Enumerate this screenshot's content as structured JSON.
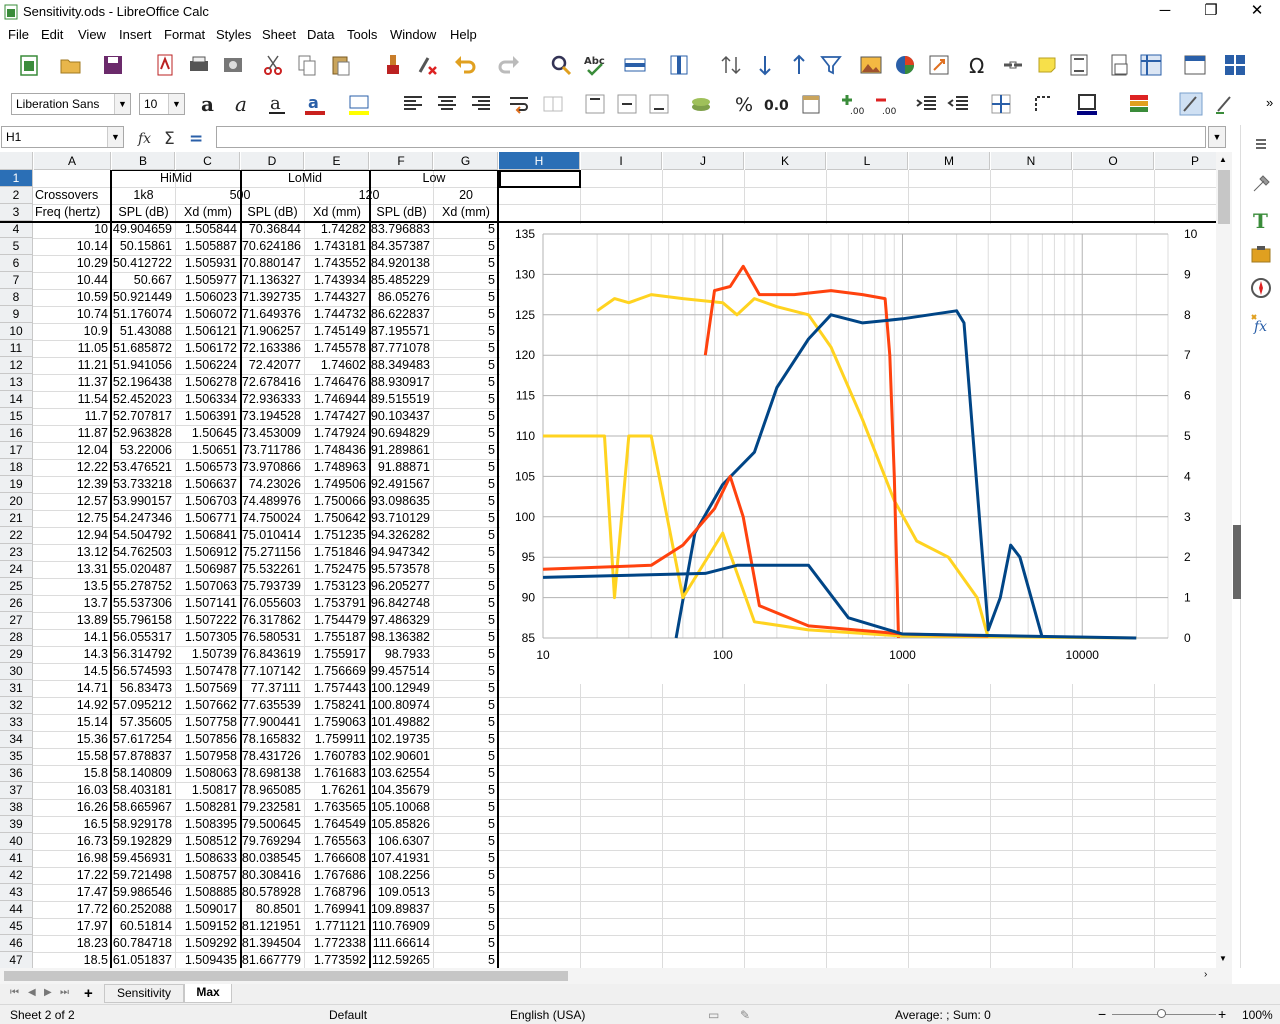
{
  "window": {
    "title": "Sensitivity.ods - LibreOffice Calc",
    "minimize": "─",
    "maximize": "❐",
    "close": "✕"
  },
  "menu": [
    "File",
    "Edit",
    "View",
    "Insert",
    "Format",
    "Styles",
    "Sheet",
    "Data",
    "Tools",
    "Window",
    "Help"
  ],
  "format": {
    "font_name": "Liberation Sans",
    "font_size": "10"
  },
  "formula": {
    "name_box": "H1",
    "content": ""
  },
  "columns": [
    "A",
    "B",
    "C",
    "D",
    "E",
    "F",
    "G",
    "H",
    "I",
    "J",
    "K",
    "L",
    "M",
    "N",
    "O",
    "P"
  ],
  "header_rows": {
    "row1": {
      "b_g": [
        "HiMid",
        "LoMid",
        "Low"
      ]
    },
    "row2": {
      "a": "Crossovers",
      "b": "1k8",
      "cd": "500",
      "ef": "120",
      "g": "20"
    },
    "row3": [
      "Freq (hertz)",
      "SPL (dB)",
      "Xd (mm)",
      "SPL (dB)",
      "Xd (mm)",
      "SPL (dB)",
      "Xd (mm)"
    ]
  },
  "rows": [
    [
      "10",
      "49.904659",
      "1.505844",
      "70.36844",
      "1.74282",
      "83.796883",
      "5"
    ],
    [
      "10.14",
      "50.15861",
      "1.505887",
      "70.624186",
      "1.743181",
      "84.357387",
      "5"
    ],
    [
      "10.29",
      "50.412722",
      "1.505931",
      "70.880147",
      "1.743552",
      "84.920138",
      "5"
    ],
    [
      "10.44",
      "50.667",
      "1.505977",
      "71.136327",
      "1.743934",
      "85.485229",
      "5"
    ],
    [
      "10.59",
      "50.921449",
      "1.506023",
      "71.392735",
      "1.744327",
      "86.05276",
      "5"
    ],
    [
      "10.74",
      "51.176074",
      "1.506072",
      "71.649376",
      "1.744732",
      "86.622837",
      "5"
    ],
    [
      "10.9",
      "51.43088",
      "1.506121",
      "71.906257",
      "1.745149",
      "87.195571",
      "5"
    ],
    [
      "11.05",
      "51.685872",
      "1.506172",
      "72.163386",
      "1.745578",
      "87.771078",
      "5"
    ],
    [
      "11.21",
      "51.941056",
      "1.506224",
      "72.42077",
      "1.74602",
      "88.349483",
      "5"
    ],
    [
      "11.37",
      "52.196438",
      "1.506278",
      "72.678416",
      "1.746476",
      "88.930917",
      "5"
    ],
    [
      "11.54",
      "52.452023",
      "1.506334",
      "72.936333",
      "1.746944",
      "89.515519",
      "5"
    ],
    [
      "11.7",
      "52.707817",
      "1.506391",
      "73.194528",
      "1.747427",
      "90.103437",
      "5"
    ],
    [
      "11.87",
      "52.963828",
      "1.50645",
      "73.453009",
      "1.747924",
      "90.694829",
      "5"
    ],
    [
      "12.04",
      "53.22006",
      "1.50651",
      "73.711786",
      "1.748436",
      "91.289861",
      "5"
    ],
    [
      "12.22",
      "53.476521",
      "1.506573",
      "73.970866",
      "1.748963",
      "91.88871",
      "5"
    ],
    [
      "12.39",
      "53.733218",
      "1.506637",
      "74.23026",
      "1.749506",
      "92.491567",
      "5"
    ],
    [
      "12.57",
      "53.990157",
      "1.506703",
      "74.489976",
      "1.750066",
      "93.098635",
      "5"
    ],
    [
      "12.75",
      "54.247346",
      "1.506771",
      "74.750024",
      "1.750642",
      "93.710129",
      "5"
    ],
    [
      "12.94",
      "54.504792",
      "1.506841",
      "75.010414",
      "1.751235",
      "94.326282",
      "5"
    ],
    [
      "13.12",
      "54.762503",
      "1.506912",
      "75.271156",
      "1.751846",
      "94.947342",
      "5"
    ],
    [
      "13.31",
      "55.020487",
      "1.506987",
      "75.532261",
      "1.752475",
      "95.573578",
      "5"
    ],
    [
      "13.5",
      "55.278752",
      "1.507063",
      "75.793739",
      "1.753123",
      "96.205277",
      "5"
    ],
    [
      "13.7",
      "55.537306",
      "1.507141",
      "76.055603",
      "1.753791",
      "96.842748",
      "5"
    ],
    [
      "13.89",
      "55.796158",
      "1.507222",
      "76.317862",
      "1.754479",
      "97.486329",
      "5"
    ],
    [
      "14.1",
      "56.055317",
      "1.507305",
      "76.580531",
      "1.755187",
      "98.136382",
      "5"
    ],
    [
      "14.3",
      "56.314792",
      "1.50739",
      "76.843619",
      "1.755917",
      "98.7933",
      "5"
    ],
    [
      "14.5",
      "56.574593",
      "1.507478",
      "77.107142",
      "1.756669",
      "99.457514",
      "5"
    ],
    [
      "14.71",
      "56.83473",
      "1.507569",
      "77.37111",
      "1.757443",
      "100.12949",
      "5"
    ],
    [
      "14.92",
      "57.095212",
      "1.507662",
      "77.635539",
      "1.758241",
      "100.80974",
      "5"
    ],
    [
      "15.14",
      "57.35605",
      "1.507758",
      "77.900441",
      "1.759063",
      "101.49882",
      "5"
    ],
    [
      "15.36",
      "57.617254",
      "1.507856",
      "78.165832",
      "1.759911",
      "102.19735",
      "5"
    ],
    [
      "15.58",
      "57.878837",
      "1.507958",
      "78.431726",
      "1.760783",
      "102.90601",
      "5"
    ],
    [
      "15.8",
      "58.140809",
      "1.508063",
      "78.698138",
      "1.761683",
      "103.62554",
      "5"
    ],
    [
      "16.03",
      "58.403181",
      "1.50817",
      "78.965085",
      "1.76261",
      "104.35679",
      "5"
    ],
    [
      "16.26",
      "58.665967",
      "1.508281",
      "79.232581",
      "1.763565",
      "105.10068",
      "5"
    ],
    [
      "16.5",
      "58.929178",
      "1.508395",
      "79.500645",
      "1.764549",
      "105.85826",
      "5"
    ],
    [
      "16.73",
      "59.192829",
      "1.508512",
      "79.769294",
      "1.765563",
      "106.6307",
      "5"
    ],
    [
      "16.98",
      "59.456931",
      "1.508633",
      "80.038545",
      "1.766608",
      "107.41931",
      "5"
    ],
    [
      "17.22",
      "59.721498",
      "1.508757",
      "80.308416",
      "1.767686",
      "108.2256",
      "5"
    ],
    [
      "17.47",
      "59.986546",
      "1.508885",
      "80.578928",
      "1.768796",
      "109.0513",
      "5"
    ],
    [
      "17.72",
      "60.252088",
      "1.509017",
      "80.8501",
      "1.769941",
      "109.89837",
      "5"
    ],
    [
      "17.97",
      "60.51814",
      "1.509152",
      "81.121951",
      "1.771121",
      "110.76909",
      "5"
    ],
    [
      "18.23",
      "60.784718",
      "1.509292",
      "81.394504",
      "1.772338",
      "111.66614",
      "5"
    ],
    [
      "18.5",
      "61.051837",
      "1.509435",
      "81.667779",
      "1.773592",
      "112.59265",
      "5"
    ]
  ],
  "chart_data": {
    "type": "line",
    "title": "",
    "x_scale": "log",
    "xlim": [
      10,
      30000
    ],
    "x_ticks": [
      "10",
      "100",
      "1000",
      "10000"
    ],
    "y_left": {
      "ylim": [
        85,
        135
      ],
      "ticks": [
        "85",
        "90",
        "95",
        "100",
        "105",
        "110",
        "115",
        "120",
        "125",
        "130",
        "135"
      ]
    },
    "y_right": {
      "ylim": [
        0,
        10
      ],
      "ticks": [
        "0",
        "1",
        "2",
        "3",
        "4",
        "5",
        "6",
        "7",
        "8",
        "9",
        "10"
      ]
    },
    "grid": true,
    "legend": "none",
    "series": [
      {
        "color": "#ffd320",
        "axis": "left",
        "points": [
          [
            20,
            125.5
          ],
          [
            25,
            127
          ],
          [
            30,
            126.5
          ],
          [
            40,
            127.5
          ],
          [
            60,
            127
          ],
          [
            100,
            126.5
          ],
          [
            120,
            125
          ],
          [
            150,
            127
          ],
          [
            200,
            126
          ],
          [
            300,
            125
          ],
          [
            400,
            121
          ],
          [
            600,
            112
          ],
          [
            900,
            102
          ],
          [
            1200,
            97
          ],
          [
            1800,
            95
          ],
          [
            2600,
            90
          ],
          [
            3000,
            85
          ]
        ]
      },
      {
        "color": "#ff420e",
        "axis": "left",
        "points": [
          [
            80,
            120
          ],
          [
            90,
            128
          ],
          [
            110,
            128.5
          ],
          [
            130,
            131
          ],
          [
            160,
            127.5
          ],
          [
            250,
            127.5
          ],
          [
            400,
            128
          ],
          [
            600,
            127.5
          ],
          [
            800,
            127
          ],
          [
            850,
            120
          ],
          [
            900,
            105
          ],
          [
            950,
            85
          ]
        ]
      },
      {
        "color": "#004586",
        "axis": "left",
        "points": [
          [
            55,
            85
          ],
          [
            70,
            98
          ],
          [
            100,
            104
          ],
          [
            150,
            108
          ],
          [
            200,
            116
          ],
          [
            300,
            122
          ],
          [
            400,
            125
          ],
          [
            600,
            124
          ],
          [
            1000,
            124.5
          ],
          [
            2000,
            125.5
          ],
          [
            2200,
            124
          ],
          [
            3000,
            86
          ],
          [
            3500,
            90
          ],
          [
            4000,
            96.5
          ],
          [
            4500,
            95
          ],
          [
            6000,
            85
          ]
        ]
      },
      {
        "color": "#ffd320",
        "axis": "right",
        "points": [
          [
            10,
            5
          ],
          [
            22,
            5
          ],
          [
            25,
            1
          ],
          [
            30,
            5
          ],
          [
            40,
            5
          ],
          [
            60,
            1
          ],
          [
            100,
            2.6
          ],
          [
            150,
            0.4
          ],
          [
            300,
            0.2
          ],
          [
            1000,
            0.05
          ],
          [
            20000,
            0
          ]
        ]
      },
      {
        "color": "#ff420e",
        "axis": "right",
        "points": [
          [
            10,
            1.7
          ],
          [
            40,
            1.8
          ],
          [
            60,
            2.3
          ],
          [
            90,
            3.2
          ],
          [
            110,
            4
          ],
          [
            130,
            3
          ],
          [
            160,
            0.8
          ],
          [
            300,
            0.3
          ],
          [
            1000,
            0.1
          ],
          [
            3000,
            0.05
          ]
        ]
      },
      {
        "color": "#004586",
        "axis": "right",
        "points": [
          [
            10,
            1.5
          ],
          [
            80,
            1.6
          ],
          [
            120,
            1.8
          ],
          [
            300,
            1.8
          ],
          [
            500,
            0.5
          ],
          [
            1000,
            0.1
          ],
          [
            20000,
            0
          ]
        ]
      }
    ]
  },
  "tabs": {
    "add": "+",
    "items": [
      "Sensitivity",
      "Max"
    ]
  },
  "status": {
    "sheet": "Sheet 2 of 2",
    "style": "Default",
    "language": "English (USA)",
    "stats": "Average: ; Sum: 0",
    "zoom": "100%"
  }
}
